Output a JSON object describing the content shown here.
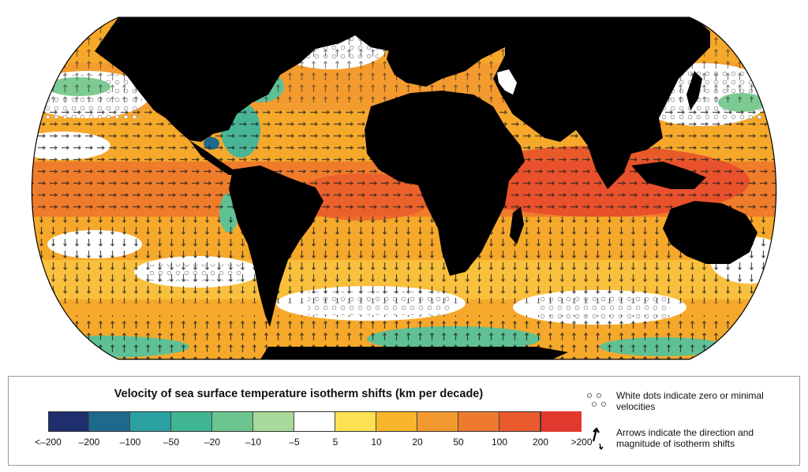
{
  "legend": {
    "title": "Velocity of sea surface temperature isotherm shifts (km per decade)",
    "ticks": [
      "<–200",
      "–200",
      "–100",
      "–50",
      "–20",
      "–10",
      "–5",
      "5",
      "10",
      "20",
      "50",
      "100",
      "200",
      ">200"
    ],
    "colors": [
      "#1f2f6e",
      "#1e6a8f",
      "#2aa0a3",
      "#3fb592",
      "#6cc58e",
      "#a8d99a",
      "#ffffff",
      "#fde153",
      "#f7b62b",
      "#f29a30",
      "#ee7a2d",
      "#ea5a2c",
      "#e03a2e"
    ],
    "dots_note": "White dots indicate zero or minimal velocities",
    "arrows_note": "Arrows indicate the direction and magnitude of isotherm shifts"
  },
  "map": {
    "ocean_color": "#f6a82b",
    "land_color": "#000000",
    "regions": [
      "warm-ocean",
      "cool-ocean",
      "minimal-velocity",
      "continents"
    ],
    "icons": [
      "white-dot-icon",
      "arrow-icon"
    ]
  }
}
